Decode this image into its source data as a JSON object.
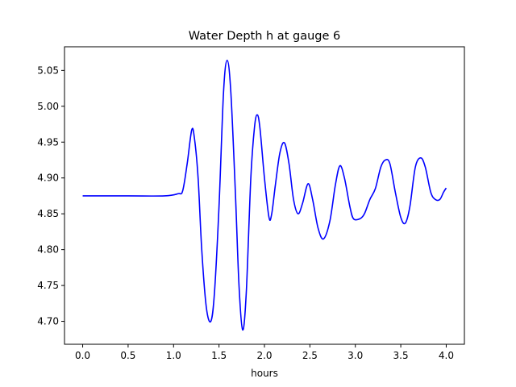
{
  "chart_data": {
    "type": "line",
    "title": "Water Depth h at gauge 6",
    "xlabel": "hours",
    "ylabel": "",
    "xlim": [
      -0.2,
      4.2
    ],
    "ylim": [
      4.668,
      5.083
    ],
    "xticks": [
      "0.0",
      "0.5",
      "1.0",
      "1.5",
      "2.0",
      "2.5",
      "3.0",
      "3.5",
      "4.0"
    ],
    "yticks": [
      "4.70",
      "4.75",
      "4.80",
      "4.85",
      "4.90",
      "4.95",
      "5.00",
      "5.05"
    ],
    "grid": false,
    "series": [
      {
        "color": "#0000ff",
        "points": [
          [
            0.0,
            4.875
          ],
          [
            0.5,
            4.875
          ],
          [
            0.9,
            4.875
          ],
          [
            1.05,
            4.878
          ],
          [
            1.1,
            4.882
          ],
          [
            1.15,
            4.92
          ],
          [
            1.2,
            4.967
          ],
          [
            1.23,
            4.955
          ],
          [
            1.27,
            4.9
          ],
          [
            1.31,
            4.8
          ],
          [
            1.36,
            4.72
          ],
          [
            1.41,
            4.7
          ],
          [
            1.45,
            4.74
          ],
          [
            1.5,
            4.86
          ],
          [
            1.55,
            5.02
          ],
          [
            1.59,
            5.064
          ],
          [
            1.63,
            5.02
          ],
          [
            1.68,
            4.88
          ],
          [
            1.72,
            4.75
          ],
          [
            1.76,
            4.688
          ],
          [
            1.8,
            4.74
          ],
          [
            1.85,
            4.9
          ],
          [
            1.89,
            4.97
          ],
          [
            1.92,
            4.988
          ],
          [
            1.95,
            4.97
          ],
          [
            2.0,
            4.9
          ],
          [
            2.05,
            4.845
          ],
          [
            2.08,
            4.85
          ],
          [
            2.12,
            4.89
          ],
          [
            2.17,
            4.935
          ],
          [
            2.22,
            4.949
          ],
          [
            2.27,
            4.92
          ],
          [
            2.32,
            4.87
          ],
          [
            2.37,
            4.85
          ],
          [
            2.42,
            4.865
          ],
          [
            2.48,
            4.892
          ],
          [
            2.53,
            4.87
          ],
          [
            2.59,
            4.83
          ],
          [
            2.65,
            4.815
          ],
          [
            2.72,
            4.84
          ],
          [
            2.78,
            4.89
          ],
          [
            2.83,
            4.917
          ],
          [
            2.88,
            4.9
          ],
          [
            2.94,
            4.86
          ],
          [
            2.98,
            4.843
          ],
          [
            3.05,
            4.843
          ],
          [
            3.1,
            4.85
          ],
          [
            3.16,
            4.87
          ],
          [
            3.22,
            4.885
          ],
          [
            3.28,
            4.915
          ],
          [
            3.33,
            4.925
          ],
          [
            3.38,
            4.92
          ],
          [
            3.44,
            4.88
          ],
          [
            3.5,
            4.845
          ],
          [
            3.55,
            4.837
          ],
          [
            3.6,
            4.86
          ],
          [
            3.66,
            4.915
          ],
          [
            3.72,
            4.928
          ],
          [
            3.77,
            4.915
          ],
          [
            3.83,
            4.88
          ],
          [
            3.88,
            4.87
          ],
          [
            3.93,
            4.87
          ],
          [
            3.97,
            4.88
          ],
          [
            4.0,
            4.886
          ]
        ]
      }
    ]
  }
}
